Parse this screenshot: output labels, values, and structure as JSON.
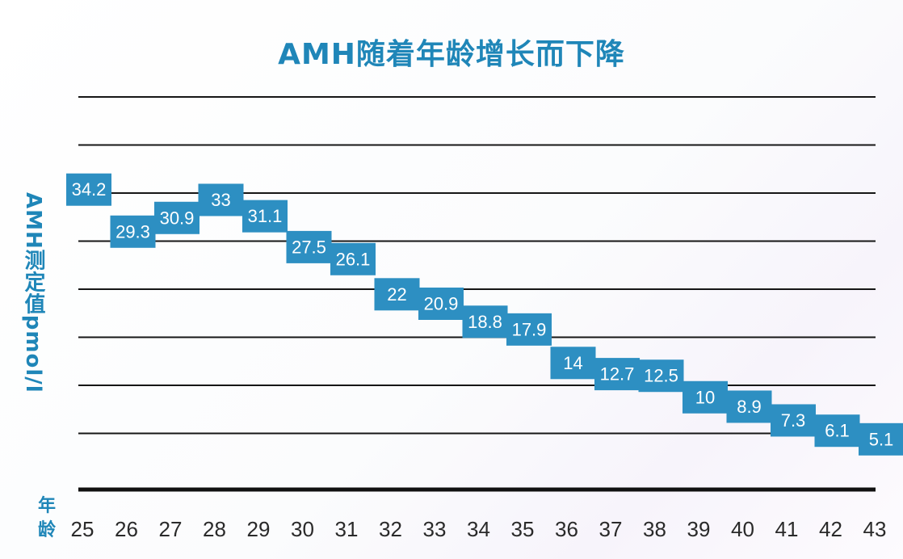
{
  "chart_data": {
    "type": "line",
    "title": "AMH随着年龄增长而下降",
    "xlabel": "年龄",
    "ylabel": "AMH测定值pmol/l",
    "categories": [
      "25",
      "26",
      "27",
      "28",
      "29",
      "30",
      "31",
      "32",
      "33",
      "34",
      "35",
      "36",
      "37",
      "38",
      "39",
      "40",
      "41",
      "42",
      "43"
    ],
    "tick_labels": [
      "25",
      "26",
      "27",
      "28",
      "29",
      "30",
      "31",
      "32",
      "33",
      "34",
      "35",
      "36",
      "37",
      "38",
      "39",
      "40",
      "41",
      "42",
      "43"
    ],
    "values": [
      34.2,
      29.3,
      30.9,
      33,
      31.1,
      27.5,
      26.1,
      22,
      20.9,
      18.8,
      17.9,
      14,
      12.7,
      12.5,
      10,
      8.9,
      7.3,
      6.1,
      5.1
    ],
    "value_labels": [
      "34.2",
      "29.3",
      "30.9",
      "33",
      "31.1",
      "27.5",
      "26.1",
      "22",
      "20.9",
      "18.8",
      "17.9",
      "14",
      "12.7",
      "12.5",
      "10",
      "8.9",
      "7.3",
      "6.1",
      "5.1"
    ],
    "ylim": [
      0,
      45
    ],
    "grid": true,
    "legend": "none",
    "colors": {
      "title": "#1f86b8",
      "box": "#2d8fc2",
      "box_text": "#ffffff",
      "gridline": "#161616"
    }
  }
}
